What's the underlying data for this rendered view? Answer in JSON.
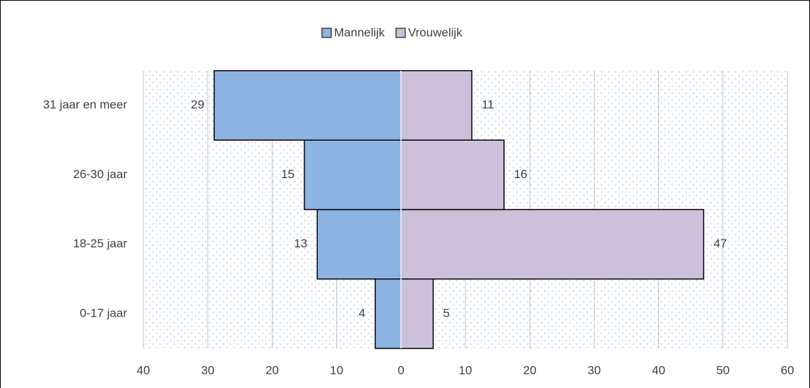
{
  "chart_data": {
    "type": "bar",
    "orientation": "horizontal",
    "categories": [
      "0-17 jaar",
      "18-25 jaar",
      "26-30 jaar",
      "31 jaar en meer"
    ],
    "series": [
      {
        "name": "Mannelijk",
        "color": "#8db3e2",
        "values": [
          -4,
          -13,
          -15,
          -29
        ],
        "value_labels": [
          "4",
          "13",
          "15",
          "29"
        ]
      },
      {
        "name": "Vrouwelijk",
        "color": "#ccc0da",
        "values": [
          5,
          47,
          16,
          11
        ]
      }
    ],
    "xlim": [
      -40,
      60
    ],
    "xticks": [
      {
        "value": -40,
        "label": "40"
      },
      {
        "value": -30,
        "label": "30"
      },
      {
        "value": -20,
        "label": "20"
      },
      {
        "value": -10,
        "label": "10"
      },
      0,
      10,
      20,
      30,
      40,
      50,
      60
    ],
    "grid": true,
    "legend": "top"
  }
}
